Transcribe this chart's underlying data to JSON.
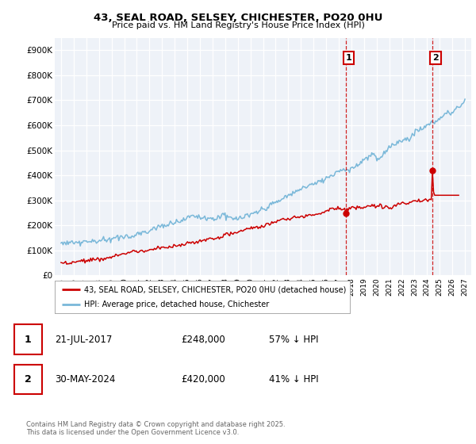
{
  "title_line1": "43, SEAL ROAD, SELSEY, CHICHESTER, PO20 0HU",
  "title_line2": "Price paid vs. HM Land Registry's House Price Index (HPI)",
  "hpi_color": "#7ab8d9",
  "price_color": "#cc0000",
  "plot_bg_color": "#eef2f8",
  "grid_color": "#ffffff",
  "ylim": [
    0,
    950000
  ],
  "yticks": [
    0,
    100000,
    200000,
    300000,
    400000,
    500000,
    600000,
    700000,
    800000,
    900000
  ],
  "ytick_labels": [
    "£0",
    "£100K",
    "£200K",
    "£300K",
    "£400K",
    "£500K",
    "£600K",
    "£700K",
    "£800K",
    "£900K"
  ],
  "xlim_start": 1994.5,
  "xlim_end": 2027.5,
  "ann1_x": 2017.55,
  "ann1_y": 248000,
  "ann2_x": 2024.42,
  "ann2_y": 420000,
  "legend_entry1": "43, SEAL ROAD, SELSEY, CHICHESTER, PO20 0HU (detached house)",
  "legend_entry2": "HPI: Average price, detached house, Chichester",
  "footnote": "Contains HM Land Registry data © Crown copyright and database right 2025.\nThis data is licensed under the Open Government Licence v3.0.",
  "table_rows": [
    {
      "num": "1",
      "date": "21-JUL-2017",
      "price": "£248,000",
      "hpi": "57% ↓ HPI"
    },
    {
      "num": "2",
      "date": "30-MAY-2024",
      "price": "£420,000",
      "hpi": "41% ↓ HPI"
    }
  ]
}
